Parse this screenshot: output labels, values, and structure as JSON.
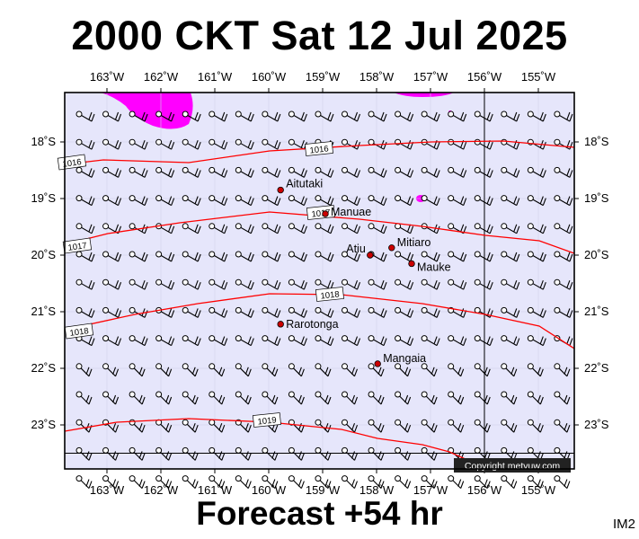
{
  "header": {
    "title": "2000 CKT Sat 12 Jul 2025"
  },
  "footer": {
    "forecast": "Forecast +54 hr",
    "code": "IM2"
  },
  "map": {
    "lon_labels": [
      "163˚W",
      "162˚W",
      "161˚W",
      "160˚W",
      "159˚W",
      "158˚W",
      "157˚W",
      "156˚W",
      "155˚W"
    ],
    "lat_labels": [
      "18˚S",
      "19˚S",
      "20˚S",
      "21˚S",
      "22˚S",
      "23˚S"
    ],
    "places": [
      {
        "name": "Aitutaki",
        "lon": -159.78,
        "lat": -18.85
      },
      {
        "name": "Manuae",
        "lon": -158.95,
        "lat": -19.27
      },
      {
        "name": "Mitiaro",
        "lon": -157.72,
        "lat": -19.87
      },
      {
        "name": "Atiu",
        "lon": -158.12,
        "lat": -20.0
      },
      {
        "name": "Mauke",
        "lon": -157.35,
        "lat": -20.15
      },
      {
        "name": "Rarotonga",
        "lon": -159.78,
        "lat": -21.22
      },
      {
        "name": "Mangaia",
        "lon": -157.98,
        "lat": -21.92
      }
    ],
    "isobars": [
      {
        "label": "1016",
        "pressure": 1016
      },
      {
        "label": "1017",
        "pressure": 1017
      },
      {
        "label": "1018",
        "pressure": 1018
      },
      {
        "label": "1019",
        "pressure": 1019
      }
    ],
    "colors": {
      "background": "#e6e6fb",
      "isobar": "#ff0000",
      "rain": "#ff00ff",
      "place": "#cc0000"
    },
    "copyright": "Copyright metvuw.com"
  }
}
